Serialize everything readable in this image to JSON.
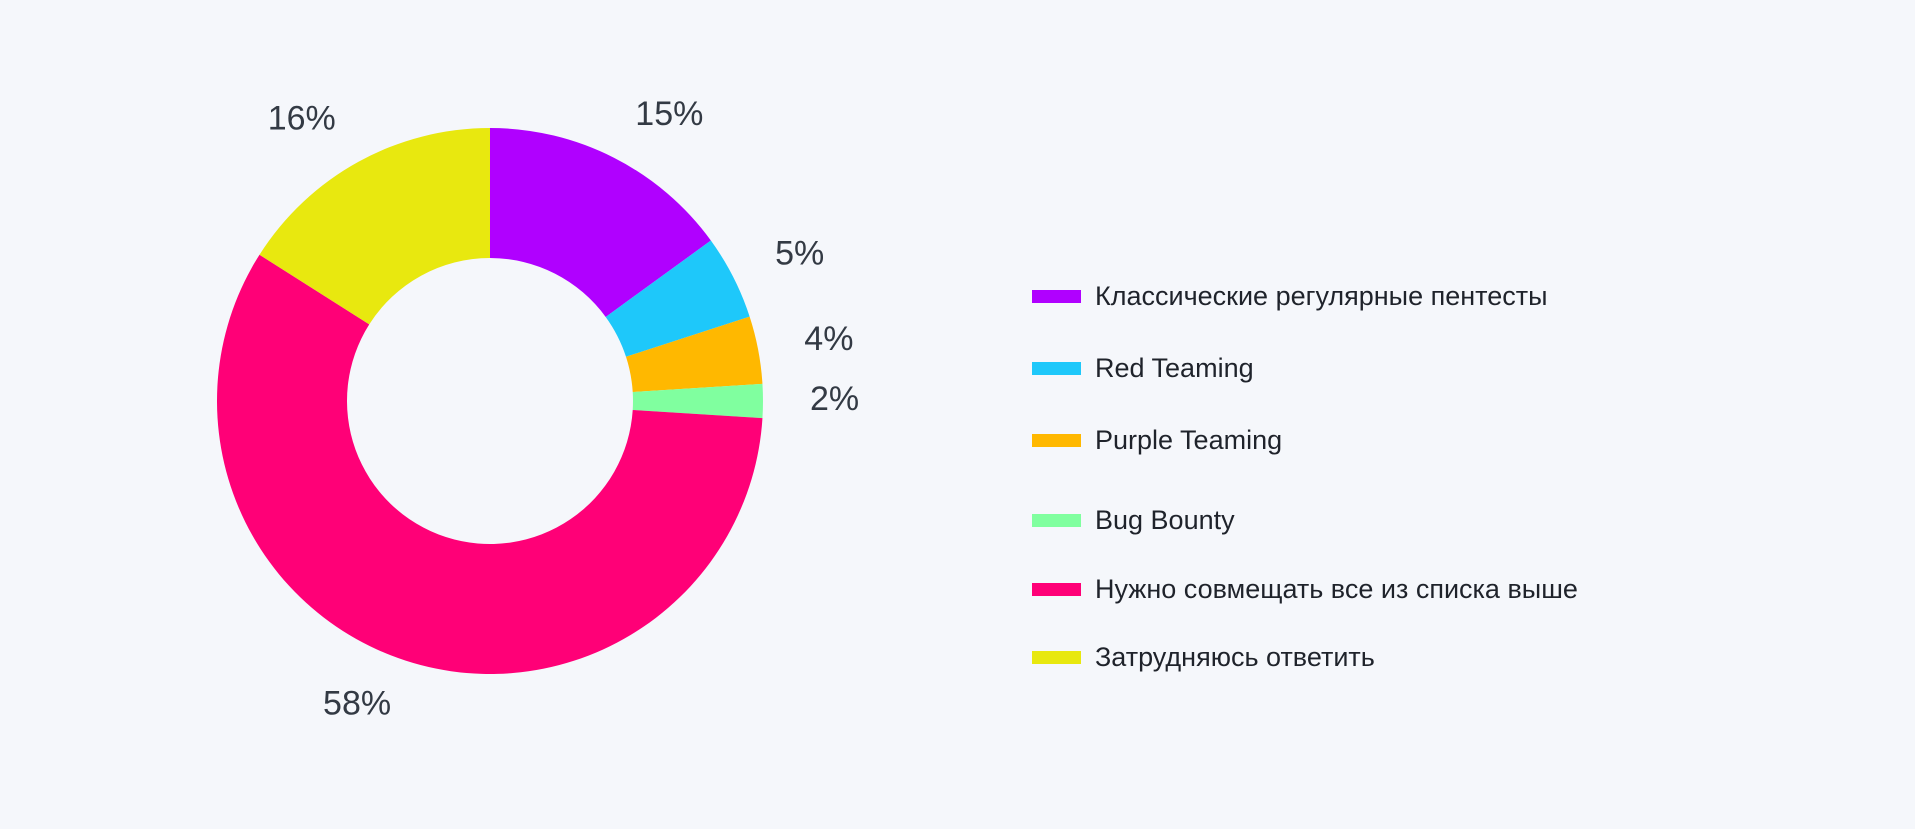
{
  "chart_data": {
    "type": "pie",
    "donut": true,
    "legend_position": "right",
    "slices": [
      {
        "label": "Классические регулярные пентесты",
        "value": 15,
        "value_label": "15%",
        "color": "#b000ff"
      },
      {
        "label": "Red Teaming",
        "value": 5,
        "value_label": "5%",
        "color": "#1ec8fa"
      },
      {
        "label": "Purple Teaming",
        "value": 4,
        "value_label": "4%",
        "color": "#ffb800"
      },
      {
        "label": "Bug Bounty",
        "value": 2,
        "value_label": "2%",
        "color": "#80ff9f"
      },
      {
        "label": "Нужно совмещать все из списка выше",
        "value": 58,
        "value_label": "58%",
        "color": "#ff0077"
      },
      {
        "label": "Затрудняюсь ответить",
        "value": 16,
        "value_label": "16%",
        "color": "#e8e80f"
      }
    ]
  },
  "colors": {
    "background": "#f5f7fb",
    "label_text": "#333a44",
    "legend_text": "#1f232b"
  }
}
